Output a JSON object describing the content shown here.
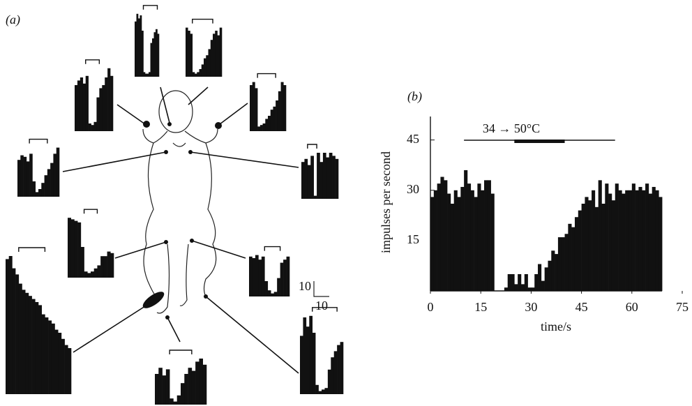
{
  "panel_a": {
    "label": "(a)",
    "scale_bar": {
      "y_label": "10",
      "x_label": "10"
    },
    "histograms": [
      {
        "values": [
          36,
          41,
          38,
          40,
          30,
          3,
          2,
          2,
          3,
          22,
          25,
          29,
          31,
          28
        ],
        "stimulus": [
          5,
          13
        ]
      },
      {
        "values": [
          32,
          30,
          28,
          3,
          2,
          3,
          5,
          8,
          12,
          14,
          18,
          24,
          28,
          30,
          27,
          32
        ],
        "stimulus": [
          3,
          12
        ]
      },
      {
        "values": [
          30,
          33,
          35,
          31,
          36,
          5,
          4,
          6,
          22,
          28,
          30,
          35,
          41,
          36
        ],
        "stimulus": [
          4,
          9
        ]
      },
      {
        "values": [
          30,
          32,
          28,
          3,
          4,
          5,
          8,
          10,
          14,
          16,
          20,
          26,
          32,
          30
        ],
        "stimulus": [
          3,
          10
        ]
      },
      {
        "values": [
          24,
          27,
          26,
          23,
          28,
          10,
          3,
          5,
          9,
          14,
          18,
          22,
          28,
          32
        ],
        "stimulus": [
          4,
          10
        ]
      },
      {
        "values": [
          24,
          26,
          22,
          28,
          2,
          30,
          24,
          30,
          27,
          30,
          28,
          26
        ],
        "stimulus": [
          2,
          5
        ]
      },
      {
        "values": [
          39,
          38,
          37,
          36,
          20,
          4,
          3,
          4,
          6,
          8,
          14,
          14,
          17,
          16
        ],
        "stimulus": [
          5,
          9
        ]
      },
      {
        "values": [
          26,
          25,
          27,
          24,
          26,
          10,
          4,
          2,
          3,
          12,
          22,
          24,
          26
        ],
        "stimulus": [
          5,
          10
        ]
      },
      {
        "values": [
          88,
          90,
          82,
          78,
          72,
          68,
          66,
          64,
          62,
          60,
          58,
          52,
          50,
          48,
          46,
          42,
          40,
          36,
          32,
          30
        ],
        "stimulus": [
          4,
          12
        ]
      },
      {
        "values": [
          20,
          24,
          19,
          23,
          4,
          2,
          6,
          14,
          20,
          24,
          22,
          28,
          30,
          26
        ],
        "stimulus": [
          4,
          10
        ]
      },
      {
        "values": [
          38,
          50,
          44,
          51,
          40,
          6,
          2,
          3,
          4,
          16,
          24,
          28,
          32,
          34
        ],
        "stimulus": [
          4,
          12
        ]
      }
    ]
  },
  "chart_data": {
    "type": "histogram",
    "label": "(b)",
    "x_label": "time/s",
    "y_label": "impulses per second",
    "bins": [
      0,
      1,
      2,
      3,
      4,
      5,
      6,
      7,
      8,
      9,
      10,
      11,
      12,
      13,
      14,
      15,
      16,
      17,
      18,
      19,
      20,
      21,
      22,
      23,
      24,
      25,
      26,
      27,
      28,
      29,
      30,
      31,
      32,
      33,
      34,
      35,
      36,
      37,
      38,
      39,
      40,
      41,
      42,
      43,
      44,
      45,
      46,
      47,
      48,
      49,
      50,
      51,
      52,
      53,
      54,
      55,
      56,
      57,
      58,
      59,
      60,
      61,
      62,
      63,
      64,
      65,
      66,
      67,
      68,
      69
    ],
    "values": [
      28,
      30,
      32,
      34,
      33,
      29,
      26,
      30,
      28,
      31,
      36,
      32,
      30,
      28,
      32,
      30,
      33,
      33,
      29,
      0,
      0,
      0,
      1,
      5,
      5,
      2,
      5,
      2,
      5,
      1,
      1,
      5,
      8,
      3,
      7,
      9,
      12,
      11,
      16,
      16,
      17,
      20,
      19,
      22,
      24,
      26,
      28,
      27,
      30,
      25,
      33,
      26,
      32,
      29,
      27,
      32,
      30,
      29,
      30,
      30,
      32,
      30,
      31,
      30,
      32,
      29,
      31,
      30,
      28
    ],
    "color": "#111111",
    "stimulus": {
      "label": "34 → 50°C",
      "span": [
        10,
        55
      ],
      "heat": [
        25,
        40
      ]
    },
    "xlim": [
      0,
      75
    ],
    "xticks": [
      0,
      15,
      30,
      45,
      60,
      75
    ],
    "ylim": [
      0,
      52
    ],
    "yticks": [
      15,
      30,
      45
    ]
  }
}
